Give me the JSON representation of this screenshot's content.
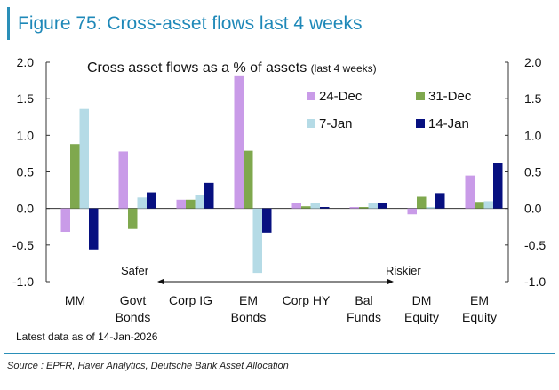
{
  "figure_title": "Figure 75: Cross-asset flows last 4 weeks",
  "note": "Latest data as of 14-Jan-2026",
  "source": "Source : EPFR, Haver Analytics, Deutsche Bank Asset Allocation",
  "colors": {
    "title": "#1e88b8",
    "rule": "#2a8fb8",
    "series": [
      "#c99be8",
      "#7fa84e",
      "#b5dbe6",
      "#071080"
    ]
  },
  "chart_data": {
    "type": "bar",
    "title_main": "Cross asset flows as a % of assets",
    "title_sub": "(last 4 weeks)",
    "categories": [
      [
        "MM"
      ],
      [
        "Govt",
        "Bonds"
      ],
      [
        "Corp IG"
      ],
      [
        "EM",
        "Bonds"
      ],
      [
        "Corp HY"
      ],
      [
        "Bal",
        "Funds"
      ],
      [
        "DM",
        "Equity"
      ],
      [
        "EM",
        "Equity"
      ]
    ],
    "series": [
      {
        "name": "24-Dec",
        "values": [
          -0.32,
          0.78,
          0.12,
          1.82,
          0.08,
          0.02,
          -0.08,
          0.45
        ]
      },
      {
        "name": "31-Dec",
        "values": [
          0.88,
          -0.28,
          0.12,
          0.79,
          0.03,
          0.02,
          0.16,
          0.09
        ]
      },
      {
        "name": "7-Jan",
        "values": [
          1.36,
          0.15,
          0.18,
          -0.88,
          0.07,
          0.08,
          0.02,
          0.1
        ]
      },
      {
        "name": "14-Jan",
        "values": [
          -0.56,
          0.22,
          0.35,
          -0.33,
          0.02,
          0.08,
          0.21,
          0.62
        ]
      }
    ],
    "ylim": [
      -1.0,
      2.0
    ],
    "yticks": [
      "-1.0",
      "-0.5",
      "0.0",
      "0.5",
      "1.0",
      "1.5",
      "2.0"
    ],
    "ytick_values": [
      -1.0,
      -0.5,
      0.0,
      0.5,
      1.0,
      1.5,
      2.0
    ],
    "annotation_left": "Safer",
    "annotation_right": "Riskier",
    "legend": "top-right, 2 columns"
  }
}
